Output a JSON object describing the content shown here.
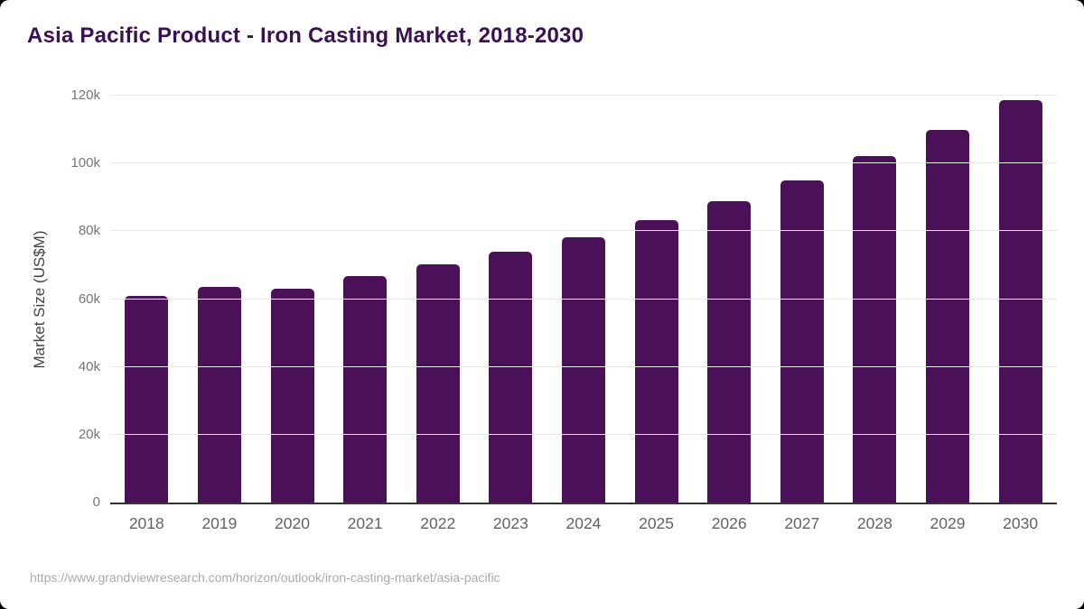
{
  "page": {
    "outer_background": "#000000",
    "card_background": "#ffffff"
  },
  "header": {
    "title": "Asia Pacific Product - Iron Casting Market, 2018-2030",
    "title_color": "#3a1153"
  },
  "footer": {
    "source_url": "https://www.grandviewresearch.com/horizon/outlook/iron-casting-market/asia-pacific"
  },
  "chart_data": {
    "type": "bar",
    "title": "Asia Pacific Product - Iron Casting Market, 2018-2030",
    "xlabel": "",
    "ylabel": "Market Size (US$M)",
    "categories": [
      "2018",
      "2019",
      "2020",
      "2021",
      "2022",
      "2023",
      "2024",
      "2025",
      "2026",
      "2027",
      "2028",
      "2029",
      "2030"
    ],
    "values": [
      61000,
      63700,
      63000,
      66800,
      70200,
      74000,
      78300,
      83400,
      88900,
      95100,
      102200,
      109900,
      118800
    ],
    "ylim": [
      0,
      120000
    ],
    "yticks": [
      {
        "value": 0,
        "label": "0"
      },
      {
        "value": 20000,
        "label": "20k"
      },
      {
        "value": 40000,
        "label": "40k"
      },
      {
        "value": 60000,
        "label": "60k"
      },
      {
        "value": 80000,
        "label": "80k"
      },
      {
        "value": 100000,
        "label": "100k"
      },
      {
        "value": 120000,
        "label": "120k"
      }
    ],
    "grid": "horizontal",
    "legend": "none",
    "bar_color": "#4a1158",
    "gridline_color": "#e9e9e9",
    "axis_line_color": "#333333",
    "y_tick_label_color": "#757575",
    "x_tick_label_color": "#5f6368",
    "axis_title_color": "#424242"
  }
}
